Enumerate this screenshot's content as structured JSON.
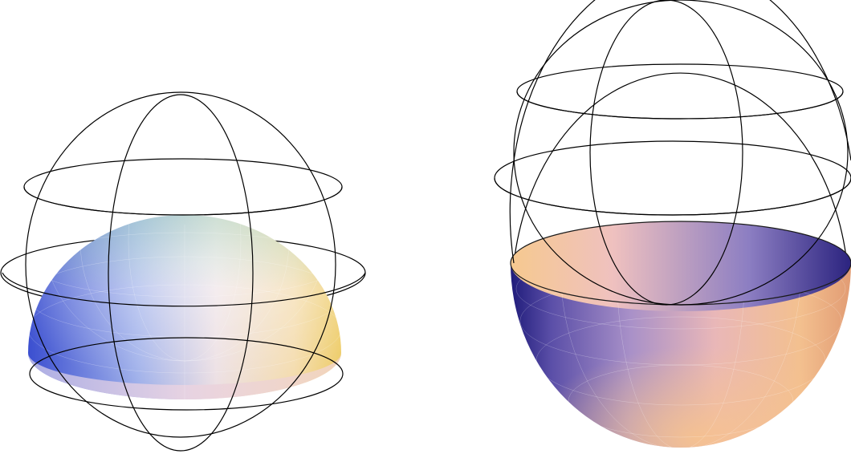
{
  "figure": {
    "panels": [
      {
        "shape": "upper hemisphere cap inside wireframe sphere",
        "colormap": [
          "#3b4fd0",
          "#b9c6ef",
          "#f4e3cf",
          "#f2d07c",
          "#5fbf8a"
        ]
      },
      {
        "shape": "lower hemispherical bowl inside wireframe sphere",
        "colormap": [
          "#1f1b7a",
          "#8d7fc0",
          "#f0b6a6",
          "#f4c48a",
          "#b98fbf"
        ]
      }
    ],
    "colors": {
      "wireframe": "#000000",
      "background": "#ffffff"
    }
  }
}
